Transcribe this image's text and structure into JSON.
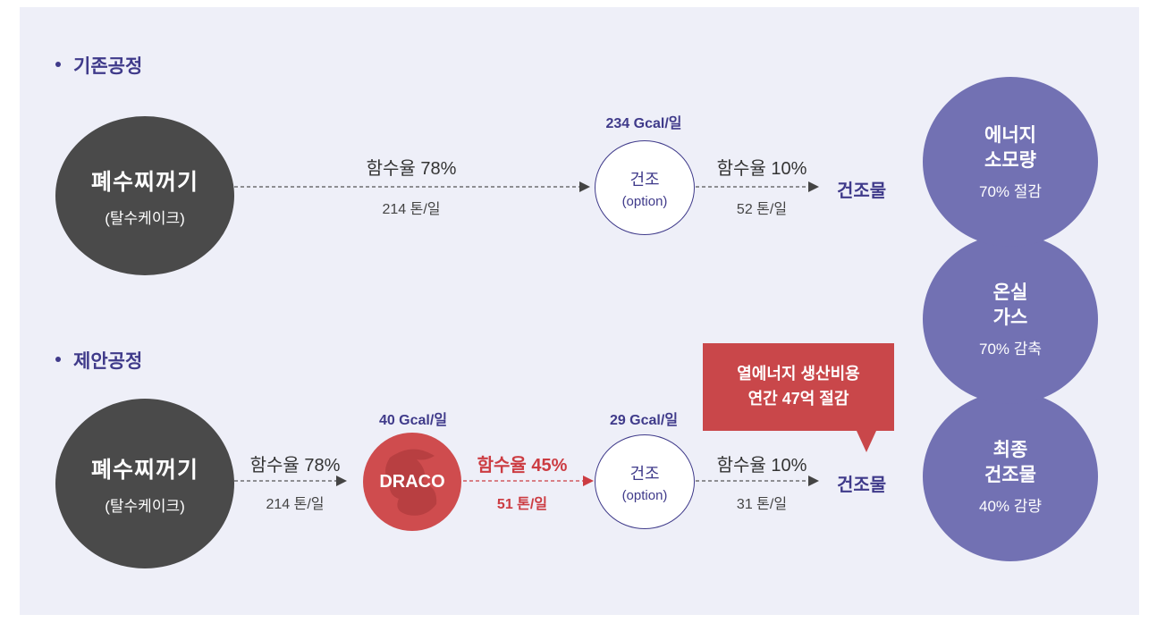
{
  "existing": {
    "title": "기존공정",
    "sludge": {
      "main": "폐수찌꺼기",
      "sub": "(탈수케이크)"
    },
    "moisture_in": "함수율 78%",
    "rate_in": "214 톤/일",
    "gcal": "234 Gcal/일",
    "dryer": {
      "main": "건조",
      "sub": "(option)"
    },
    "moisture_out": "함수율 10%",
    "rate_out": "52 톤/일",
    "product": "건조물"
  },
  "proposed": {
    "title": "제안공정",
    "sludge": {
      "main": "폐수찌꺼기",
      "sub": "(탈수케이크)"
    },
    "moisture_in": "함수율 78%",
    "rate_in": "214 톤/일",
    "draco_gcal": "40 Gcal/일",
    "draco": "DRACO",
    "moisture_mid": "함수율 45%",
    "rate_mid": "51 톤/일",
    "gcal": "29 Gcal/일",
    "dryer": {
      "main": "건조",
      "sub": "(option)"
    },
    "moisture_out": "함수율 10%",
    "rate_out": "31 톤/일",
    "product": "건조물"
  },
  "callout": {
    "line1": "열에너지 생산비용",
    "line2": "연간 47억 절감"
  },
  "benefits": [
    {
      "line1": "에너지",
      "line2": "소모량",
      "value": "70% 절감"
    },
    {
      "line1": "온실",
      "line2": "가스",
      "value": "70% 감축"
    },
    {
      "line1": "최종",
      "line2": "건조물",
      "value": "40% 감량"
    }
  ],
  "colors": {
    "navy": "#3f3a8a",
    "purple": "#7271b3",
    "red": "#cc3c42",
    "dark": "#4a4a4a",
    "panel": "#eeeff8"
  }
}
